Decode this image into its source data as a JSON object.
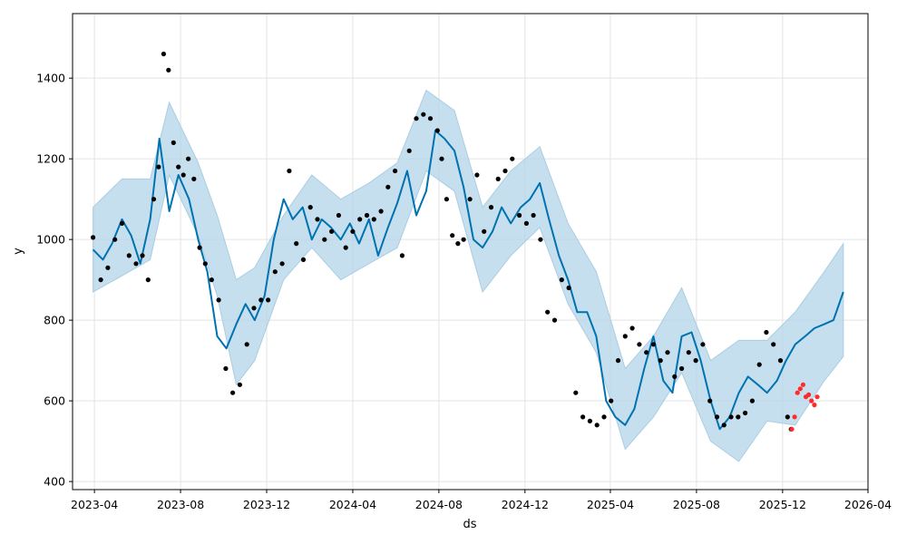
{
  "chart_data": {
    "type": "line",
    "title": "",
    "xlabel": "ds",
    "ylabel": "y",
    "x_ticks": [
      "2023-04",
      "2023-08",
      "2023-12",
      "2024-04",
      "2024-08",
      "2024-12",
      "2025-04",
      "2025-08",
      "2025-12",
      "2026-04"
    ],
    "y_ticks": [
      400,
      600,
      800,
      1000,
      1200,
      1400
    ],
    "xlim": [
      "2023-03-01",
      "2026-04-01"
    ],
    "ylim": [
      380,
      1560
    ],
    "grid": true,
    "legend": "none",
    "colors": {
      "forecast_line": "#0072B2",
      "uncertainty_band": "#b3d4e8",
      "observed_points": "#000000",
      "holdout_points": "#ff2a2a"
    },
    "series": [
      {
        "role": "forecast",
        "x": [
          "2023-03-30",
          "2023-04-13",
          "2023-04-26",
          "2023-05-10",
          "2023-05-23",
          "2023-06-05",
          "2023-06-19",
          "2023-07-02",
          "2023-07-16",
          "2023-07-29",
          "2023-08-13",
          "2023-08-26",
          "2023-09-08",
          "2023-09-22",
          "2023-10-05",
          "2023-10-19",
          "2023-11-01",
          "2023-11-14",
          "2023-11-28",
          "2023-12-11",
          "2023-12-25",
          "2024-01-07",
          "2024-01-21",
          "2024-02-03",
          "2024-02-17",
          "2024-03-01",
          "2024-03-15",
          "2024-03-28",
          "2024-04-10",
          "2024-04-24",
          "2024-05-07",
          "2024-05-21",
          "2024-06-03",
          "2024-06-17",
          "2024-06-30",
          "2024-07-14",
          "2024-07-27",
          "2024-08-09",
          "2024-08-23",
          "2024-09-05",
          "2024-09-19",
          "2024-10-02",
          "2024-10-16",
          "2024-10-29",
          "2024-11-11",
          "2024-11-25",
          "2024-12-08",
          "2024-12-22",
          "2025-01-04",
          "2025-01-18",
          "2025-01-31",
          "2025-02-13",
          "2025-02-27",
          "2025-03-12",
          "2025-03-26",
          "2025-04-08",
          "2025-04-22",
          "2025-05-05",
          "2025-05-19",
          "2025-06-01",
          "2025-06-15",
          "2025-06-28",
          "2025-07-11",
          "2025-07-25",
          "2025-08-07",
          "2025-08-21",
          "2025-09-03",
          "2025-09-17",
          "2025-09-30",
          "2025-10-13",
          "2025-10-27",
          "2025-11-09",
          "2025-11-23",
          "2025-12-06",
          "2025-12-19",
          "2026-01-02",
          "2026-01-15",
          "2026-01-29",
          "2026-02-11",
          "2026-02-25"
        ],
        "y": [
          975,
          950,
          990,
          1050,
          1010,
          940,
          1050,
          1250,
          1070,
          1160,
          1100,
          1000,
          920,
          760,
          730,
          790,
          840,
          800,
          860,
          1000,
          1100,
          1050,
          1080,
          1000,
          1050,
          1030,
          1000,
          1040,
          990,
          1050,
          960,
          1030,
          1090,
          1170,
          1060,
          1120,
          1270,
          1250,
          1220,
          1130,
          1000,
          980,
          1020,
          1080,
          1040,
          1080,
          1100,
          1140,
          1050,
          960,
          900,
          820,
          820,
          760,
          600,
          560,
          540,
          580,
          680,
          760,
          650,
          620,
          760,
          770,
          700,
          600,
          530,
          560,
          620,
          660,
          640,
          620,
          650,
          700,
          740,
          760,
          780,
          790,
          800,
          870
        ]
      },
      {
        "role": "uncertainty",
        "x": [
          "2023-03-30",
          "2023-05-10",
          "2023-06-19",
          "2023-07-16",
          "2023-08-26",
          "2023-09-22",
          "2023-10-19",
          "2023-11-14",
          "2023-12-25",
          "2024-02-03",
          "2024-03-15",
          "2024-04-24",
          "2024-06-03",
          "2024-07-14",
          "2024-08-23",
          "2024-10-02",
          "2024-11-11",
          "2024-12-22",
          "2025-01-31",
          "2025-03-12",
          "2025-04-22",
          "2025-06-01",
          "2025-07-11",
          "2025-08-21",
          "2025-09-30",
          "2025-11-09",
          "2025-12-19",
          "2026-01-29",
          "2026-02-25"
        ],
        "upper": [
          1080,
          1150,
          1150,
          1340,
          1190,
          1060,
          900,
          930,
          1060,
          1160,
          1100,
          1140,
          1190,
          1370,
          1320,
          1080,
          1170,
          1230,
          1040,
          920,
          680,
          760,
          880,
          700,
          750,
          750,
          820,
          920,
          990
        ],
        "lower": [
          870,
          910,
          950,
          1160,
          1010,
          860,
          640,
          700,
          900,
          980,
          900,
          940,
          980,
          1170,
          1120,
          870,
          960,
          1030,
          840,
          720,
          480,
          560,
          670,
          500,
          450,
          550,
          540,
          650,
          710
        ]
      },
      {
        "role": "observed",
        "x": [
          "2023-03-30",
          "2023-04-10",
          "2023-04-20",
          "2023-04-30",
          "2023-05-10",
          "2023-05-20",
          "2023-05-30",
          "2023-06-08",
          "2023-06-16",
          "2023-06-24",
          "2023-07-01",
          "2023-07-08",
          "2023-07-15",
          "2023-07-22",
          "2023-07-29",
          "2023-08-05",
          "2023-08-12",
          "2023-08-20",
          "2023-08-28",
          "2023-09-05",
          "2023-09-14",
          "2023-09-24",
          "2023-10-04",
          "2023-10-14",
          "2023-10-24",
          "2023-11-03",
          "2023-11-13",
          "2023-11-23",
          "2023-12-03",
          "2023-12-13",
          "2023-12-23",
          "2024-01-02",
          "2024-01-12",
          "2024-01-22",
          "2024-02-01",
          "2024-02-11",
          "2024-02-21",
          "2024-03-02",
          "2024-03-12",
          "2024-03-22",
          "2024-04-01",
          "2024-04-11",
          "2024-04-21",
          "2024-05-01",
          "2024-05-11",
          "2024-05-21",
          "2024-05-31",
          "2024-06-10",
          "2024-06-20",
          "2024-06-30",
          "2024-07-10",
          "2024-07-20",
          "2024-07-30",
          "2024-08-05",
          "2024-08-12",
          "2024-08-20",
          "2024-08-28",
          "2024-09-05",
          "2024-09-14",
          "2024-09-24",
          "2024-10-04",
          "2024-10-14",
          "2024-10-24",
          "2024-11-03",
          "2024-11-13",
          "2024-11-23",
          "2024-12-03",
          "2024-12-13",
          "2024-12-23",
          "2025-01-02",
          "2025-01-12",
          "2025-01-22",
          "2025-02-01",
          "2025-02-11",
          "2025-02-21",
          "2025-03-03",
          "2025-03-13",
          "2025-03-23",
          "2025-04-02",
          "2025-04-12",
          "2025-04-22",
          "2025-05-02",
          "2025-05-12",
          "2025-05-22",
          "2025-06-01",
          "2025-06-11",
          "2025-06-21",
          "2025-07-01",
          "2025-07-11",
          "2025-07-21",
          "2025-07-31",
          "2025-08-10",
          "2025-08-20",
          "2025-08-30",
          "2025-09-09",
          "2025-09-19",
          "2025-09-29",
          "2025-10-09",
          "2025-10-19",
          "2025-10-29",
          "2025-11-08",
          "2025-11-18",
          "2025-11-28",
          "2025-12-08",
          "2025-12-13"
        ],
        "y": [
          1005,
          900,
          930,
          1000,
          1040,
          960,
          940,
          960,
          900,
          1100,
          1180,
          1460,
          1420,
          1240,
          1180,
          1160,
          1200,
          1150,
          980,
          940,
          900,
          850,
          680,
          620,
          640,
          740,
          830,
          850,
          850,
          920,
          940,
          1170,
          990,
          950,
          1080,
          1050,
          1000,
          1020,
          1060,
          980,
          1020,
          1050,
          1060,
          1050,
          1070,
          1130,
          1170,
          960,
          1220,
          1300,
          1310,
          1300,
          1270,
          1200,
          1100,
          1010,
          990,
          1000,
          1100,
          1160,
          1020,
          1080,
          1150,
          1170,
          1200,
          1060,
          1040,
          1060,
          1000,
          820,
          800,
          900,
          880,
          620,
          560,
          550,
          540,
          560,
          600,
          700,
          760,
          780,
          740,
          720,
          740,
          700,
          720,
          660,
          680,
          720,
          700,
          740,
          600,
          560,
          540,
          560,
          560,
          570,
          600,
          690,
          770,
          740,
          700,
          560,
          530
        ]
      },
      {
        "role": "holdout",
        "x": [
          "2025-12-14",
          "2025-12-18",
          "2025-12-22",
          "2025-12-26",
          "2025-12-30",
          "2026-01-03",
          "2026-01-07",
          "2026-01-11",
          "2026-01-15",
          "2026-01-19"
        ],
        "y": [
          530,
          560,
          620,
          630,
          640,
          610,
          615,
          600,
          590,
          610
        ]
      }
    ]
  }
}
